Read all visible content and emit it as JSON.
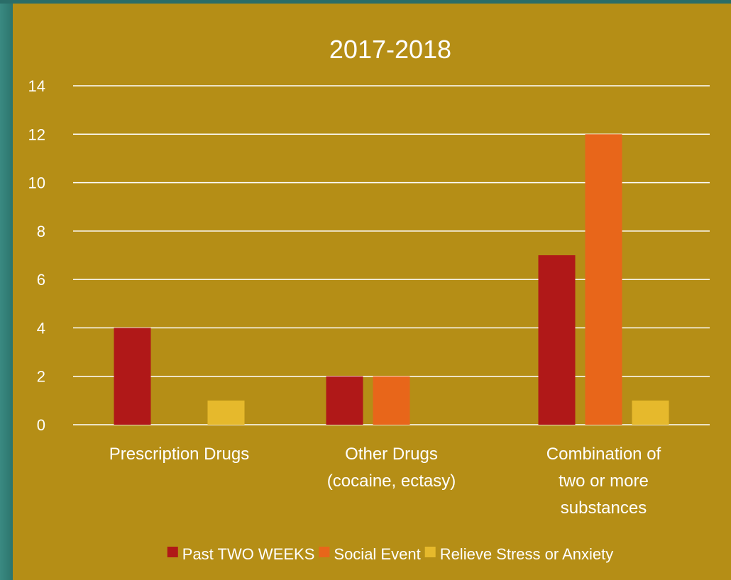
{
  "colors": {
    "background": "#b58e16",
    "side_accent": "#2f7d74",
    "text": "#ffffff",
    "gridline": "#ffffff"
  },
  "chart_data": {
    "type": "bar",
    "title": "2017-2018",
    "xlabel": "",
    "ylabel": "",
    "ylim": [
      0,
      14
    ],
    "yticks": [
      "0",
      "2",
      "4",
      "6",
      "8",
      "10",
      "12",
      "14"
    ],
    "grid": true,
    "legend_position": "bottom",
    "categories": [
      [
        "Prescription Drugs"
      ],
      [
        "Other Drugs",
        "(cocaine, ectasy)"
      ],
      [
        "Combination of",
        "two or more",
        "substances"
      ]
    ],
    "series": [
      {
        "name": "Past TWO WEEKS",
        "color": "#b01818",
        "values": [
          4,
          2,
          7
        ]
      },
      {
        "name": "Social Event",
        "color": "#e8661a",
        "values": [
          0,
          2,
          12
        ]
      },
      {
        "name": "Relieve Stress or Anxiety",
        "color": "#e6b92c",
        "values": [
          1,
          0,
          1
        ]
      }
    ]
  }
}
